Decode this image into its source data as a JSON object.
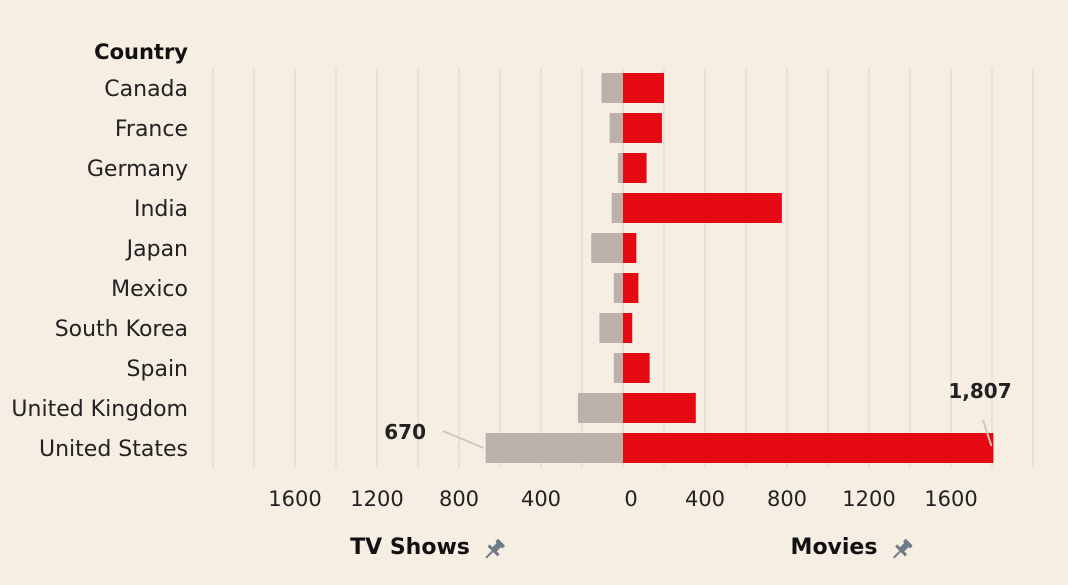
{
  "chart_data": {
    "type": "bar",
    "header": "Country",
    "categories": [
      "Canada",
      "France",
      "Germany",
      "India",
      "Japan",
      "Mexico",
      "South Korea",
      "Spain",
      "United Kingdom",
      "United States"
    ],
    "series": [
      {
        "name": "TV Shows",
        "values": [
          105,
          65,
          25,
          55,
          155,
          45,
          115,
          45,
          220,
          670
        ],
        "color": "#bbb0aa",
        "direction": "left"
      },
      {
        "name": "Movies",
        "values": [
          200,
          190,
          115,
          775,
          65,
          75,
          45,
          130,
          355,
          1807
        ],
        "color": "#e50914",
        "direction": "right"
      }
    ],
    "xlim": [
      -2000,
      2000
    ],
    "tick_values": [
      -1600,
      -1200,
      -800,
      -400,
      0,
      400,
      800,
      1200,
      1600
    ],
    "tick_labels": [
      "1600",
      "1200",
      "800",
      "400",
      "0",
      "400",
      "800",
      "1200",
      "1600"
    ],
    "annotations": [
      {
        "series": "TV Shows",
        "category": "United States",
        "text": "670"
      },
      {
        "series": "Movies",
        "category": "United States",
        "text": "1,807"
      }
    ],
    "grid": true,
    "pin_icon": "pin-icon"
  }
}
